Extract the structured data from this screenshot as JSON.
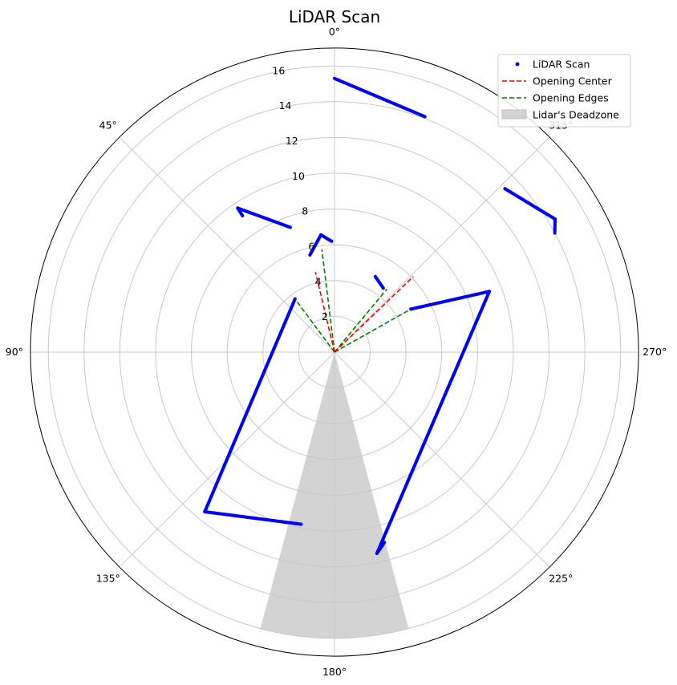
{
  "chart_data": {
    "type": "scatter",
    "projection": "polar",
    "title": "LiDAR Scan",
    "theta_zero": "top",
    "theta_direction": "counter-clockwise",
    "theta_ticks": [
      {
        "deg": 0,
        "label": "0°"
      },
      {
        "deg": 45,
        "label": "45°"
      },
      {
        "deg": 90,
        "label": "90°"
      },
      {
        "deg": 135,
        "label": "135°"
      },
      {
        "deg": 180,
        "label": "180°"
      },
      {
        "deg": 225,
        "label": "225°"
      },
      {
        "deg": 270,
        "label": "270°"
      },
      {
        "deg": 315,
        "label": "315°"
      }
    ],
    "r_ticks": [
      {
        "value": 2,
        "label": "2"
      },
      {
        "value": 4,
        "label": "4"
      },
      {
        "value": 6,
        "label": "6"
      },
      {
        "value": 8,
        "label": "8"
      },
      {
        "value": 10,
        "label": "10"
      },
      {
        "value": 12,
        "label": "12"
      },
      {
        "value": 14,
        "label": "14"
      },
      {
        "value": 16,
        "label": "16"
      }
    ],
    "rlim": [
      0,
      17
    ],
    "grid": true,
    "legend_placement": "upper right",
    "legend": [
      {
        "label": "LiDAR Scan",
        "kind": "marker",
        "color": "#0000ff"
      },
      {
        "label": "Opening Center",
        "kind": "dashed-line",
        "color": "#ff0000"
      },
      {
        "label": "Opening Edges",
        "kind": "dashed-line",
        "color": "#008000"
      },
      {
        "label": "Lidar's Deadzone",
        "kind": "patch",
        "color": "#d3d3d3"
      }
    ],
    "scan_segments": [
      {
        "from": {
          "theta": 0.0,
          "r": 15.3
        },
        "to": {
          "theta": 339.0,
          "r": 14.1
        }
      },
      {
        "from": {
          "theta": 19.5,
          "r": 7.4
        },
        "to": {
          "theta": 33.9,
          "r": 9.7
        }
      },
      {
        "from": {
          "theta": 33.9,
          "r": 9.7
        },
        "to": {
          "theta": 34.0,
          "r": 9.2
        }
      },
      {
        "from": {
          "theta": 1.5,
          "r": 6.2
        },
        "to": {
          "theta": 6.6,
          "r": 6.6
        }
      },
      {
        "from": {
          "theta": 6.6,
          "r": 6.6
        },
        "to": {
          "theta": 14.2,
          "r": 5.6
        }
      },
      {
        "from": {
          "theta": 313.8,
          "r": 13.2
        },
        "to": {
          "theta": 301.1,
          "r": 14.4
        }
      },
      {
        "from": {
          "theta": 301.1,
          "r": 14.4
        },
        "to": {
          "theta": 298.4,
          "r": 14.0
        }
      },
      {
        "from": {
          "theta": 331.6,
          "r": 4.8
        },
        "to": {
          "theta": 322.7,
          "r": 4.5
        }
      },
      {
        "from": {
          "theta": 299.4,
          "r": 4.9
        },
        "to": {
          "theta": 291.4,
          "r": 9.3
        }
      },
      {
        "from": {
          "theta": 291.4,
          "r": 9.3
        },
        "to": {
          "theta": 191.9,
          "r": 11.5
        }
      },
      {
        "from": {
          "theta": 191.9,
          "r": 11.5
        },
        "to": {
          "theta": 194.7,
          "r": 11.0
        }
      },
      {
        "from": {
          "theta": 169.0,
          "r": 9.8
        },
        "to": {
          "theta": 140.9,
          "r": 11.5
        }
      },
      {
        "from": {
          "theta": 140.9,
          "r": 11.5
        },
        "to": {
          "theta": 36.6,
          "r": 3.7
        }
      }
    ],
    "opening_center": [
      {
        "theta": 13.4,
        "r": 4.6
      },
      {
        "theta": 313.8,
        "r": 6.1
      }
    ],
    "opening_edges": [
      {
        "theta": 7.0,
        "r": 5.8
      },
      {
        "theta": 36.6,
        "r": 3.7
      },
      {
        "theta": 320.3,
        "r": 4.6
      },
      {
        "theta": 299.4,
        "r": 5.0
      }
    ],
    "deadzone": {
      "theta_min": 165.0,
      "theta_max": 195.0,
      "r_max": 16.0
    }
  }
}
